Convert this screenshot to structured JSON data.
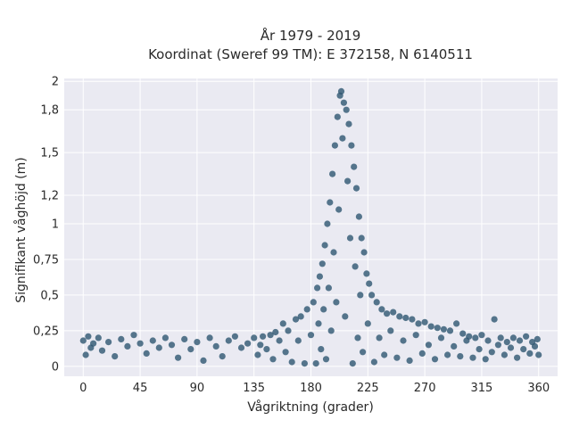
{
  "chart_data": {
    "type": "scatter",
    "title": "År 1979 - 2019",
    "subtitle": "Koordinat (Sweref 99 TM): E 372158, N 6140511",
    "xlabel": "Vågriktning (grader)",
    "ylabel": "Signifikant våghöjd (m)",
    "xlim": [
      -15,
      375
    ],
    "ylim": [
      -0.07,
      2.02
    ],
    "xticks": [
      0,
      45,
      90,
      135,
      180,
      225,
      270,
      315,
      360
    ],
    "xtick_labels": [
      "0",
      "45",
      "90",
      "135",
      "180",
      "225",
      "270",
      "315",
      "360"
    ],
    "yticks": [
      0,
      0.25,
      0.5,
      0.75,
      1,
      1.2,
      1.5,
      1.8,
      2
    ],
    "ytick_labels": [
      "0",
      "0,25",
      "0,5",
      "0,75",
      "1",
      "1,2",
      "1,5",
      "1,8",
      "2"
    ],
    "grid": true,
    "background": "#eaeaf2",
    "marker_color": "#2e5670",
    "series": [
      {
        "points": [
          [
            0,
            0.18
          ],
          [
            2,
            0.08
          ],
          [
            4,
            0.21
          ],
          [
            6,
            0.13
          ],
          [
            8,
            0.16
          ],
          [
            12,
            0.2
          ],
          [
            15,
            0.11
          ],
          [
            20,
            0.17
          ],
          [
            25,
            0.07
          ],
          [
            30,
            0.19
          ],
          [
            35,
            0.14
          ],
          [
            40,
            0.22
          ],
          [
            45,
            0.16
          ],
          [
            50,
            0.09
          ],
          [
            55,
            0.18
          ],
          [
            60,
            0.13
          ],
          [
            65,
            0.2
          ],
          [
            70,
            0.15
          ],
          [
            75,
            0.06
          ],
          [
            80,
            0.19
          ],
          [
            85,
            0.12
          ],
          [
            90,
            0.17
          ],
          [
            95,
            0.04
          ],
          [
            100,
            0.2
          ],
          [
            105,
            0.14
          ],
          [
            110,
            0.07
          ],
          [
            115,
            0.18
          ],
          [
            120,
            0.21
          ],
          [
            125,
            0.13
          ],
          [
            130,
            0.16
          ],
          [
            135,
            0.2
          ],
          [
            138,
            0.08
          ],
          [
            140,
            0.15
          ],
          [
            142,
            0.21
          ],
          [
            145,
            0.12
          ],
          [
            148,
            0.22
          ],
          [
            150,
            0.05
          ],
          [
            152,
            0.24
          ],
          [
            155,
            0.18
          ],
          [
            158,
            0.3
          ],
          [
            160,
            0.1
          ],
          [
            162,
            0.25
          ],
          [
            165,
            0.03
          ],
          [
            168,
            0.33
          ],
          [
            170,
            0.18
          ],
          [
            172,
            0.35
          ],
          [
            175,
            0.02
          ],
          [
            177,
            0.4
          ],
          [
            180,
            0.22
          ],
          [
            182,
            0.45
          ],
          [
            184,
            0.02
          ],
          [
            185,
            0.55
          ],
          [
            186,
            0.3
          ],
          [
            187,
            0.63
          ],
          [
            188,
            0.12
          ],
          [
            189,
            0.72
          ],
          [
            190,
            0.4
          ],
          [
            191,
            0.85
          ],
          [
            192,
            0.05
          ],
          [
            193,
            1.0
          ],
          [
            194,
            0.55
          ],
          [
            195,
            1.15
          ],
          [
            196,
            0.25
          ],
          [
            197,
            1.35
          ],
          [
            198,
            0.8
          ],
          [
            199,
            1.55
          ],
          [
            200,
            0.45
          ],
          [
            201,
            1.75
          ],
          [
            202,
            1.1
          ],
          [
            203,
            1.9
          ],
          [
            204,
            1.93
          ],
          [
            205,
            1.6
          ],
          [
            206,
            1.85
          ],
          [
            207,
            0.35
          ],
          [
            208,
            1.8
          ],
          [
            209,
            1.3
          ],
          [
            210,
            1.7
          ],
          [
            211,
            0.9
          ],
          [
            212,
            1.55
          ],
          [
            213,
            0.02
          ],
          [
            214,
            1.4
          ],
          [
            215,
            0.7
          ],
          [
            216,
            1.25
          ],
          [
            217,
            0.2
          ],
          [
            218,
            1.05
          ],
          [
            219,
            0.5
          ],
          [
            220,
            0.9
          ],
          [
            221,
            0.1
          ],
          [
            222,
            0.8
          ],
          [
            224,
            0.65
          ],
          [
            225,
            0.3
          ],
          [
            226,
            0.58
          ],
          [
            228,
            0.5
          ],
          [
            230,
            0.03
          ],
          [
            232,
            0.45
          ],
          [
            234,
            0.2
          ],
          [
            236,
            0.4
          ],
          [
            238,
            0.08
          ],
          [
            240,
            0.37
          ],
          [
            243,
            0.25
          ],
          [
            245,
            0.38
          ],
          [
            248,
            0.06
          ],
          [
            250,
            0.35
          ],
          [
            253,
            0.18
          ],
          [
            255,
            0.34
          ],
          [
            258,
            0.04
          ],
          [
            260,
            0.33
          ],
          [
            263,
            0.22
          ],
          [
            265,
            0.3
          ],
          [
            268,
            0.09
          ],
          [
            270,
            0.31
          ],
          [
            273,
            0.15
          ],
          [
            275,
            0.28
          ],
          [
            278,
            0.05
          ],
          [
            280,
            0.27
          ],
          [
            283,
            0.2
          ],
          [
            285,
            0.26
          ],
          [
            288,
            0.08
          ],
          [
            290,
            0.25
          ],
          [
            293,
            0.14
          ],
          [
            295,
            0.3
          ],
          [
            298,
            0.07
          ],
          [
            300,
            0.23
          ],
          [
            303,
            0.18
          ],
          [
            305,
            0.21
          ],
          [
            308,
            0.06
          ],
          [
            310,
            0.2
          ],
          [
            313,
            0.12
          ],
          [
            315,
            0.22
          ],
          [
            318,
            0.05
          ],
          [
            320,
            0.18
          ],
          [
            323,
            0.1
          ],
          [
            325,
            0.33
          ],
          [
            328,
            0.15
          ],
          [
            330,
            0.2
          ],
          [
            333,
            0.08
          ],
          [
            335,
            0.17
          ],
          [
            338,
            0.13
          ],
          [
            340,
            0.2
          ],
          [
            343,
            0.06
          ],
          [
            345,
            0.18
          ],
          [
            348,
            0.12
          ],
          [
            350,
            0.21
          ],
          [
            353,
            0.09
          ],
          [
            355,
            0.17
          ],
          [
            357,
            0.14
          ],
          [
            359,
            0.19
          ],
          [
            360,
            0.08
          ]
        ]
      }
    ]
  }
}
